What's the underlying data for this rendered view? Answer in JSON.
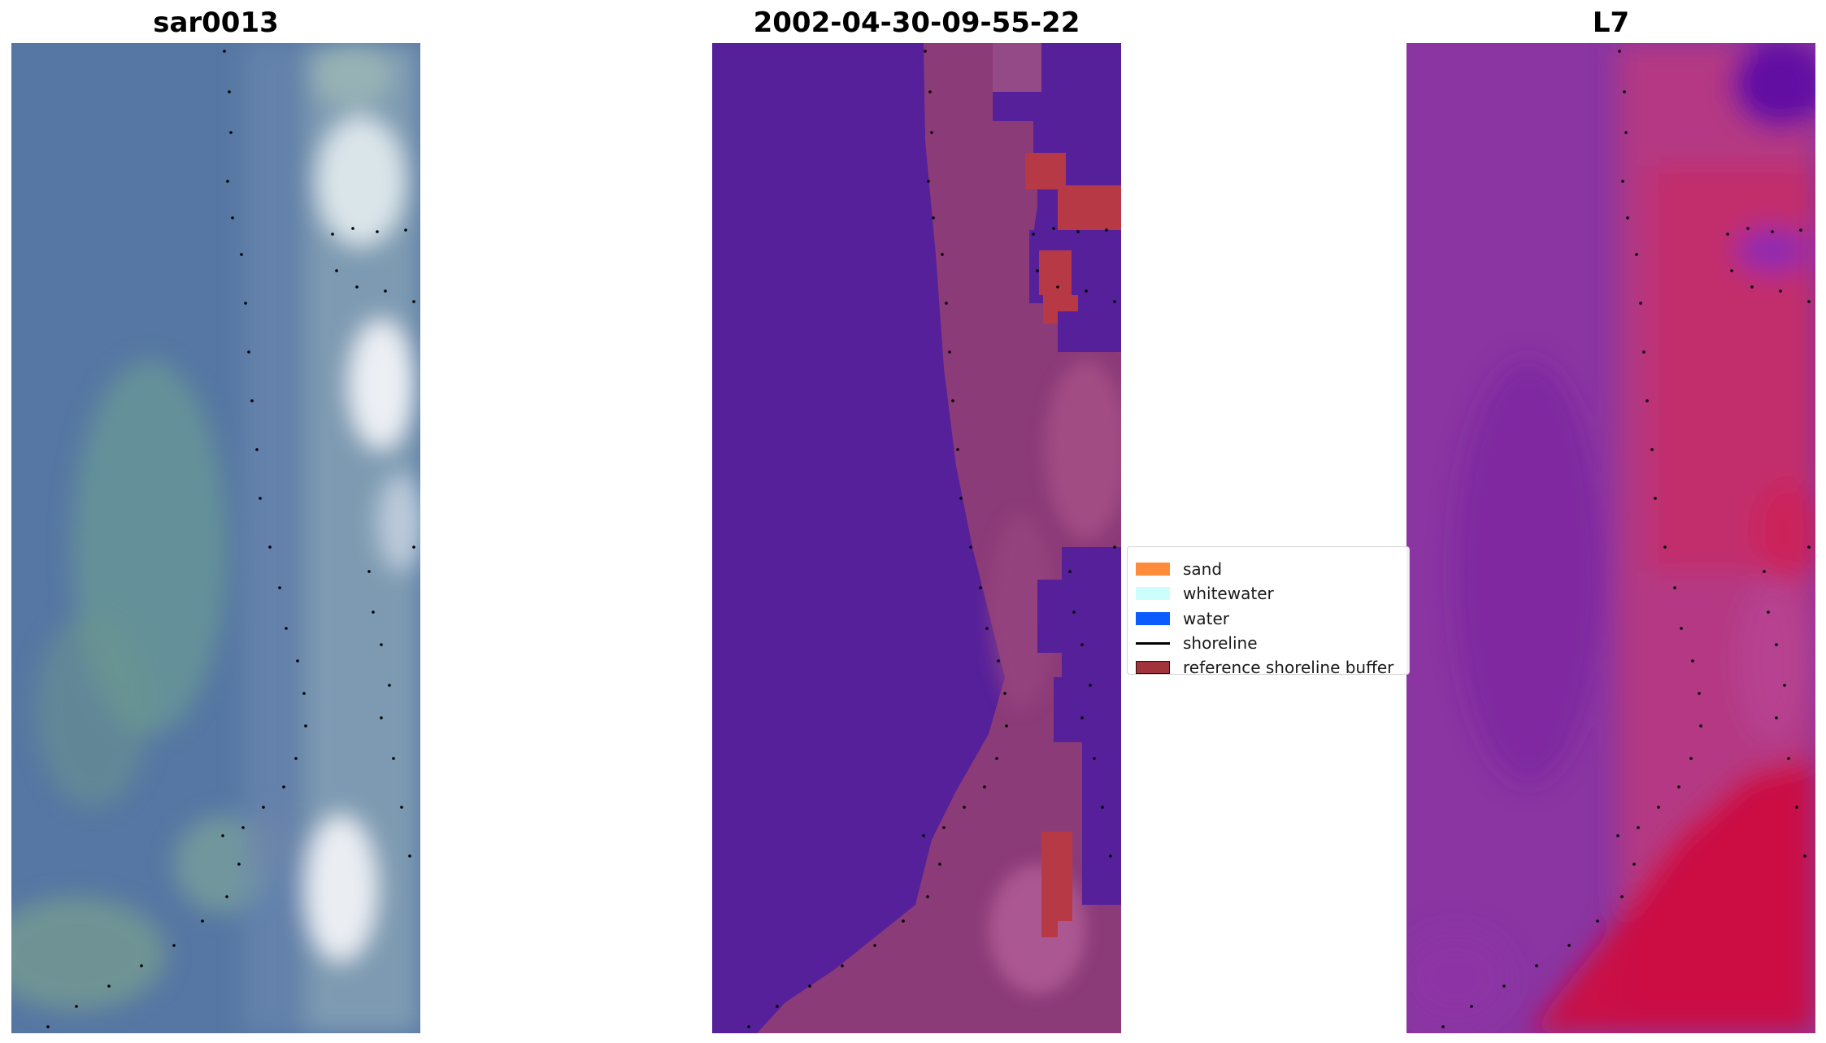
{
  "panels": [
    {
      "title": "sar0013"
    },
    {
      "title": "2002-04-30-09-55-22"
    },
    {
      "title": "L7"
    }
  ],
  "legend": {
    "items": [
      {
        "label": "sand",
        "color": "#ff8c3a",
        "kind": "patch"
      },
      {
        "label": "whitewater",
        "color": "#ccfffc",
        "kind": "patch"
      },
      {
        "label": "water",
        "color": "#0a5cff",
        "kind": "patch"
      },
      {
        "label": "shoreline",
        "color": "#000000",
        "kind": "line"
      },
      {
        "label": "reference shoreline buffer",
        "color": "#a0343a",
        "kind": "patch"
      }
    ]
  },
  "colors": {
    "rgb_sea": "#5677a3",
    "rgb_shallow": "#6a9a96",
    "rgb_beach_white": "#f2f4f8",
    "class_water": "#55209a",
    "class_land": "#8b3b78",
    "class_buffer": "#b73946",
    "false_color_sea": "#8a35a2",
    "false_color_land": "#c81a4a",
    "shoreline_dots": "#000000"
  }
}
